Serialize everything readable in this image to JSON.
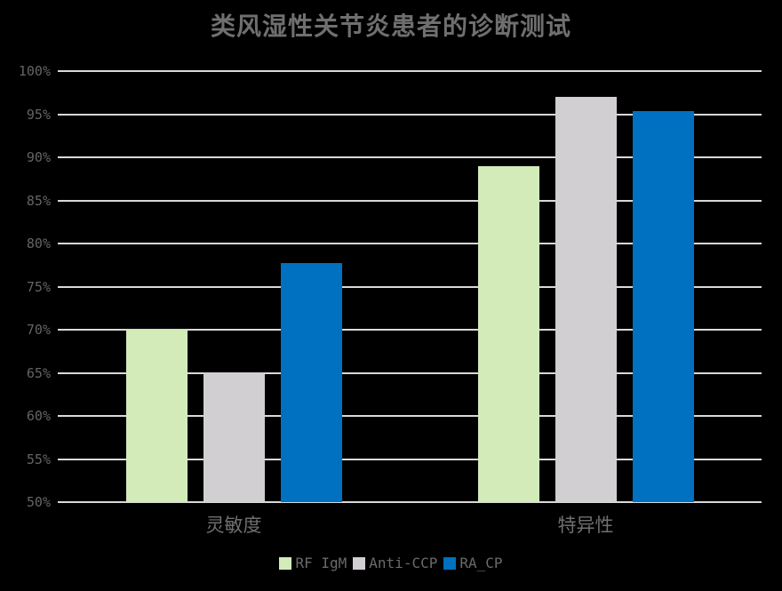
{
  "chart_data": {
    "type": "bar",
    "title": "类风湿性关节炎患者的诊断测试",
    "categories": [
      "灵敏度",
      "特异性"
    ],
    "series": [
      {
        "name": "RF IgM",
        "color": "#d2ebb9",
        "values": [
          70,
          89
        ]
      },
      {
        "name": "Anti-CCP",
        "color": "#d2cfd2",
        "values": [
          65,
          97
        ]
      },
      {
        "name": "RA_CP",
        "color": "#0070c0",
        "values": [
          77.7,
          95.4
        ]
      }
    ],
    "xlabel": "",
    "ylabel": "",
    "y_axis": {
      "min": 50,
      "max": 100,
      "step": 5,
      "tick_labels": [
        "100%",
        "95%",
        "90%",
        "85%",
        "80%",
        "75%",
        "70%",
        "65%",
        "60%",
        "55%",
        "50%"
      ]
    },
    "grid": true,
    "legend_position": "bottom",
    "colors": {
      "background": "#000000",
      "gridline": "#d9d9d9",
      "title_text": "#6f6f6f",
      "tick_text": "#646464",
      "category_text": "#6f6f6f",
      "legend_text": "#6a6a6a"
    }
  }
}
